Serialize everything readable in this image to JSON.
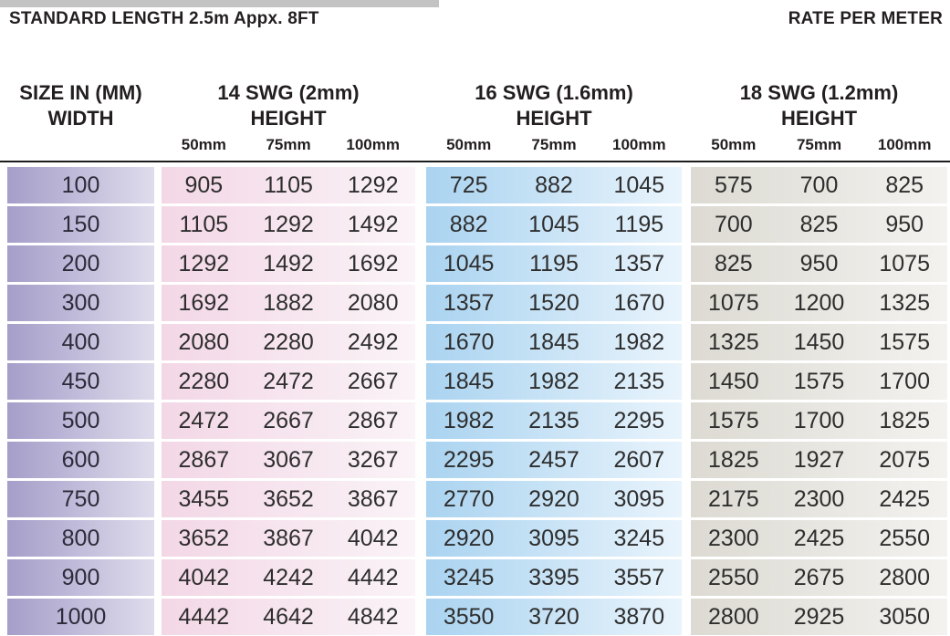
{
  "header": {
    "left_note": "STANDARD LENGTH 2.5m Appx. 8FT",
    "right_note": "RATE PER METER"
  },
  "colors": {
    "top_bar": "#c3c3c3",
    "rule": "#1c1c1c",
    "width_gradient": [
      "#a59ec9",
      "#dedcec"
    ],
    "group_gradients": [
      [
        "#f3d7e6",
        "#faf3f7"
      ],
      [
        "#aad3f0",
        "#e9f4fc"
      ],
      [
        "#dcdad2",
        "#f3f2ef"
      ]
    ]
  },
  "table": {
    "width_header_line1": "SIZE IN (MM)",
    "width_header_line2": "WIDTH",
    "groups": [
      {
        "title": "14 SWG (2mm)",
        "subtitle": "HEIGHT",
        "columns": [
          "50mm",
          "75mm",
          "100mm"
        ]
      },
      {
        "title": "16 SWG (1.6mm)",
        "subtitle": "HEIGHT",
        "columns": [
          "50mm",
          "75mm",
          "100mm"
        ]
      },
      {
        "title": "18 SWG (1.2mm)",
        "subtitle": "HEIGHT",
        "columns": [
          "50mm",
          "75mm",
          "100mm"
        ]
      }
    ],
    "rows": [
      {
        "width": "100",
        "values": [
          [
            "905",
            "1105",
            "1292"
          ],
          [
            "725",
            "882",
            "1045"
          ],
          [
            "575",
            "700",
            "825"
          ]
        ]
      },
      {
        "width": "150",
        "values": [
          [
            "1105",
            "1292",
            "1492"
          ],
          [
            "882",
            "1045",
            "1195"
          ],
          [
            "700",
            "825",
            "950"
          ]
        ]
      },
      {
        "width": "200",
        "values": [
          [
            "1292",
            "1492",
            "1692"
          ],
          [
            "1045",
            "1195",
            "1357"
          ],
          [
            "825",
            "950",
            "1075"
          ]
        ]
      },
      {
        "width": "300",
        "values": [
          [
            "1692",
            "1882",
            "2080"
          ],
          [
            "1357",
            "1520",
            "1670"
          ],
          [
            "1075",
            "1200",
            "1325"
          ]
        ]
      },
      {
        "width": "400",
        "values": [
          [
            "2080",
            "2280",
            "2492"
          ],
          [
            "1670",
            "1845",
            "1982"
          ],
          [
            "1325",
            "1450",
            "1575"
          ]
        ]
      },
      {
        "width": "450",
        "values": [
          [
            "2280",
            "2472",
            "2667"
          ],
          [
            "1845",
            "1982",
            "2135"
          ],
          [
            "1450",
            "1575",
            "1700"
          ]
        ]
      },
      {
        "width": "500",
        "values": [
          [
            "2472",
            "2667",
            "2867"
          ],
          [
            "1982",
            "2135",
            "2295"
          ],
          [
            "1575",
            "1700",
            "1825"
          ]
        ]
      },
      {
        "width": "600",
        "values": [
          [
            "2867",
            "3067",
            "3267"
          ],
          [
            "2295",
            "2457",
            "2607"
          ],
          [
            "1825",
            "1927",
            "2075"
          ]
        ]
      },
      {
        "width": "750",
        "values": [
          [
            "3455",
            "3652",
            "3867"
          ],
          [
            "2770",
            "2920",
            "3095"
          ],
          [
            "2175",
            "2300",
            "2425"
          ]
        ]
      },
      {
        "width": "800",
        "values": [
          [
            "3652",
            "3867",
            "4042"
          ],
          [
            "2920",
            "3095",
            "3245"
          ],
          [
            "2300",
            "2425",
            "2550"
          ]
        ]
      },
      {
        "width": "900",
        "values": [
          [
            "4042",
            "4242",
            "4442"
          ],
          [
            "3245",
            "3395",
            "3557"
          ],
          [
            "2550",
            "2675",
            "2800"
          ]
        ]
      },
      {
        "width": "1000",
        "values": [
          [
            "4442",
            "4642",
            "4842"
          ],
          [
            "3550",
            "3720",
            "3870"
          ],
          [
            "2800",
            "2925",
            "3050"
          ]
        ]
      }
    ]
  }
}
